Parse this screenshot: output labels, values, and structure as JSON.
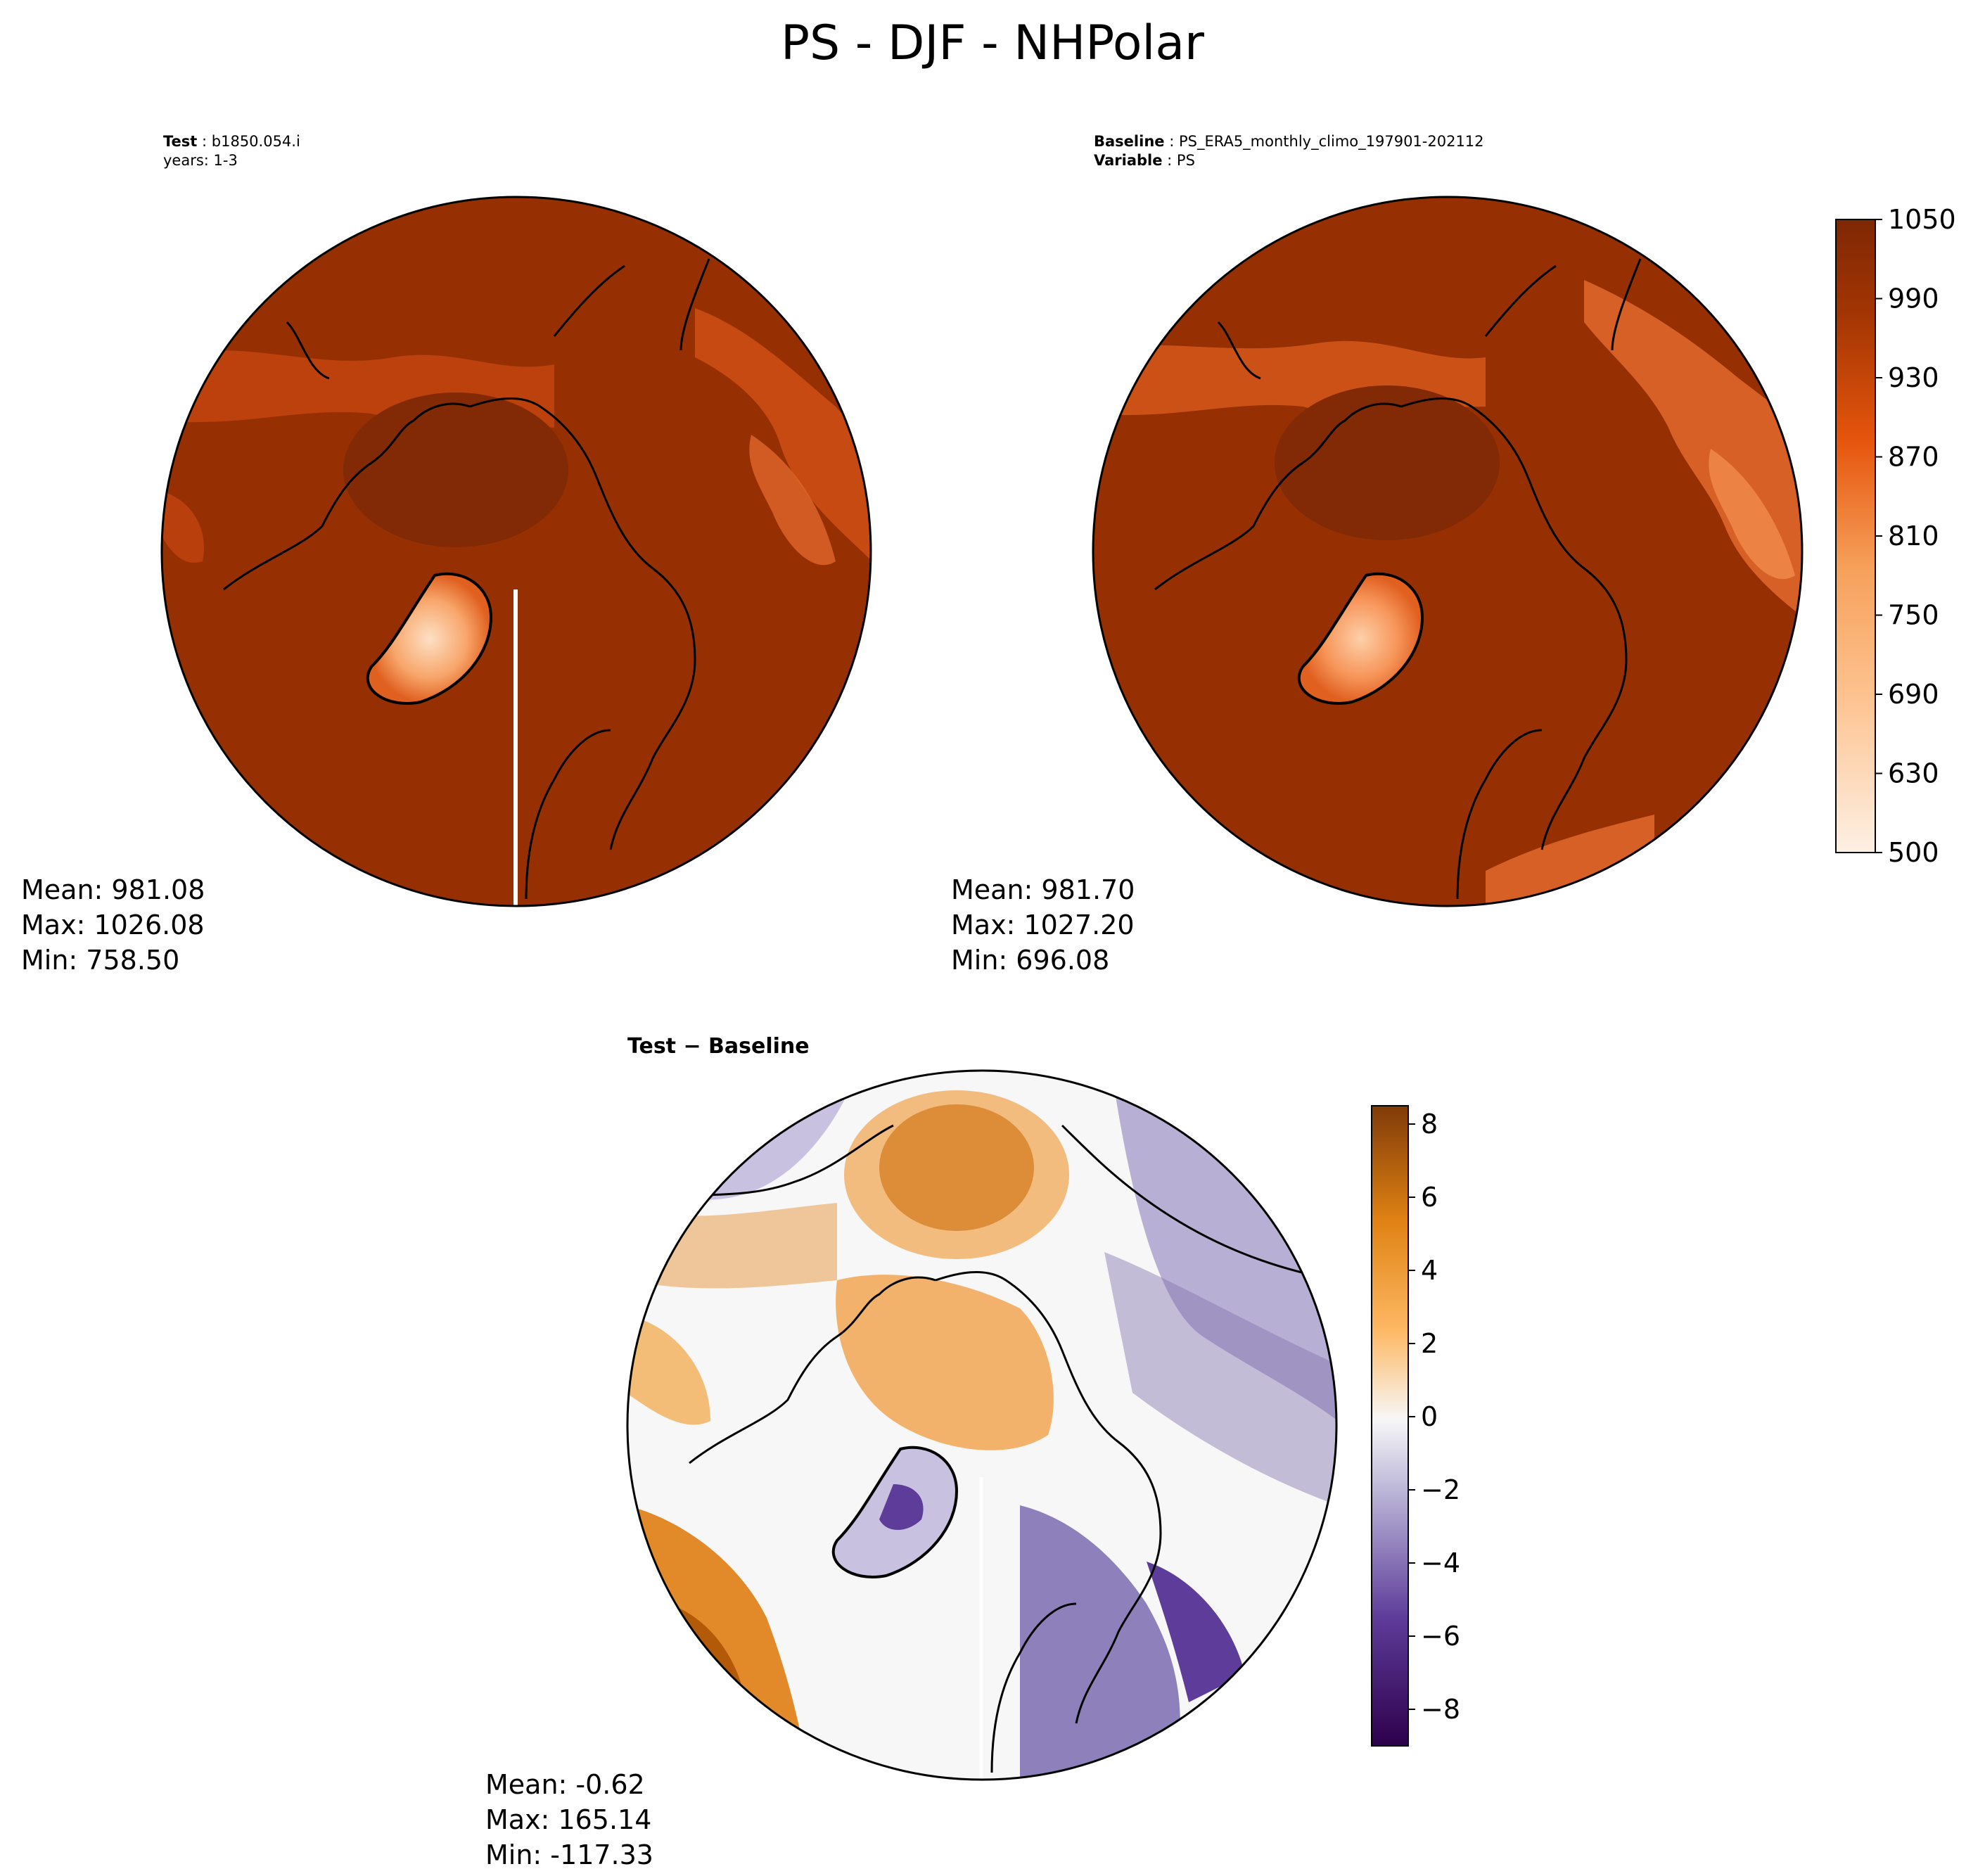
{
  "figure": {
    "suptitle": "PS - DJF - NHPolar"
  },
  "panels": {
    "test": {
      "label_bold": "Test",
      "label_sep": " : ",
      "case_name": "b1850.054.i",
      "years": "years: 1-3",
      "stats": {
        "mean": "Mean: 981.08",
        "max": "Max: 1026.08",
        "min": "Min: 758.50"
      }
    },
    "baseline": {
      "label_bold": "Baseline",
      "label_sep": " : ",
      "case_name": "PS_ERA5_monthly_climo_197901-202112",
      "variable_bold": "Variable",
      "variable_name": "PS",
      "stats": {
        "mean": "Mean: 981.70",
        "max": "Max: 1027.20",
        "min": "Min: 696.08"
      }
    },
    "difference": {
      "title": "Test − Baseline",
      "stats": {
        "mean": "Mean: -0.62",
        "max": "Max: 165.14",
        "min": "Min: -117.33"
      }
    }
  },
  "colorbars": {
    "ps": {
      "range": [
        500,
        1050
      ],
      "ticks": [
        "1050",
        "990",
        "930",
        "870",
        "810",
        "750",
        "690",
        "630",
        "500"
      ],
      "colors": [
        "#fdf0e4",
        "#f6a05a",
        "#e6550d",
        "#973102",
        "#7f2704"
      ]
    },
    "diff": {
      "range": [
        -9,
        8.5
      ],
      "ticks": [
        "8",
        "6",
        "4",
        "2",
        "0",
        "−2",
        "−4",
        "−6",
        "−8"
      ],
      "colors": [
        "#2d004b",
        "#8073ac",
        "#f7f7f7",
        "#f1a340",
        "#7f3b08"
      ]
    }
  },
  "map_colors": {
    "ps_base": "#963002",
    "ps_high": "#822905",
    "ps_low": "#c4440e",
    "ps_greenland": "#f59c63",
    "diff_base": "#f7f7f7",
    "diff_orange": "#f0a24c",
    "diff_deep_orange": "#b35a09",
    "diff_purple": "#b8afd4",
    "diff_deep_purple": "#5e3c99",
    "coastline": "#000000"
  }
}
